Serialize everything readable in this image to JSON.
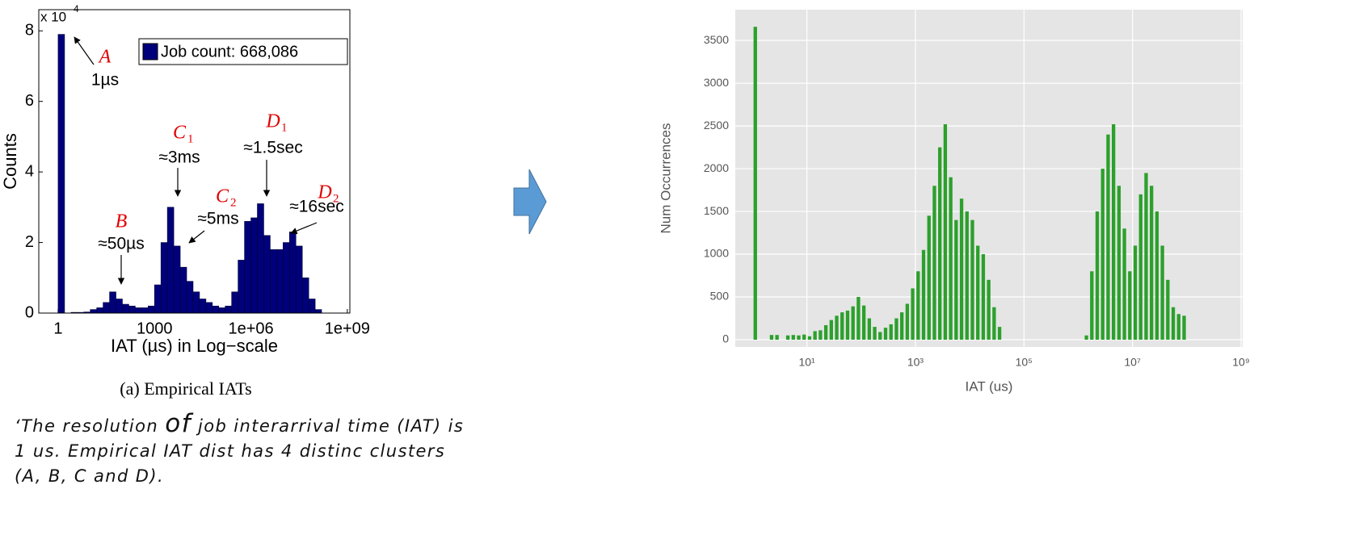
{
  "chart_data": [
    {
      "type": "histogram",
      "log_x": true,
      "caption": "(a) Empirical IATs",
      "xlabel": "IAT (µs) in Log−scale",
      "ylabel": "Counts",
      "y_multiplier": {
        "base": "x 10",
        "exponent": "4"
      },
      "bins": [
        1,
        1.585,
        2.512,
        3.981,
        6.31,
        10,
        15.85,
        25.12,
        39.81,
        63.1,
        100,
        158.5,
        251.2,
        398.1,
        631,
        1000,
        1585,
        2512,
        3981,
        6310,
        10000,
        15850,
        25120,
        39810,
        63100,
        100000,
        158500,
        251200,
        398100,
        631000,
        1000000,
        1585000,
        2512000,
        3981000,
        6310000,
        10000000,
        15850000,
        25120000,
        39810000,
        63100000,
        100000000,
        158500000,
        251200000,
        398100000,
        631000000,
        1000000000
      ],
      "series": [
        {
          "name": "Job count: 668,086",
          "color": "#00007a",
          "values": [
            7.9,
            0,
            0.02,
            0.02,
            0.03,
            0.1,
            0.15,
            0.3,
            0.6,
            0.4,
            0.25,
            0.2,
            0.15,
            0.15,
            0.2,
            0.8,
            2.0,
            3.0,
            1.9,
            1.3,
            0.9,
            0.6,
            0.4,
            0.3,
            0.2,
            0.15,
            0.2,
            0.6,
            1.5,
            2.6,
            2.7,
            3.1,
            2.2,
            1.8,
            1.8,
            2.0,
            2.3,
            1.9,
            1.0,
            0.4,
            0.1,
            0,
            0,
            0,
            0
          ]
        }
      ],
      "legend": "upper right",
      "xlim": [
        0.25,
        1200000000
      ],
      "xticks": [
        1,
        1000,
        {
          "value": 1000000,
          "label": "1e+06"
        },
        {
          "value": 1000000000,
          "label": "1e+09"
        }
      ],
      "ylim": [
        0,
        8.6
      ],
      "yticks": [
        0,
        2,
        4,
        6,
        8
      ],
      "grid": false,
      "annotations": [
        {
          "symbol": "A",
          "text": "1µs"
        },
        {
          "symbol": "B",
          "text": "≈50µs"
        },
        {
          "symbol": "C",
          "subscript": "1",
          "text": "≈3ms"
        },
        {
          "symbol": "C",
          "subscript": "2",
          "text": "≈5ms"
        },
        {
          "symbol": "D",
          "subscript": "1",
          "text": "≈1.5sec"
        },
        {
          "symbol": "D",
          "subscript": "2",
          "text": "≈16sec"
        }
      ]
    },
    {
      "type": "histogram",
      "log_x": true,
      "xlabel": "IAT (us)",
      "ylabel": "Num Occurrences",
      "color": "#2ca02c",
      "bins": [
        1,
        1.259,
        1.585,
        1.995,
        2.512,
        3.162,
        3.981,
        5.012,
        6.31,
        7.943,
        10,
        12.59,
        15.85,
        19.95,
        25.12,
        31.62,
        39.81,
        50.12,
        63.1,
        79.43,
        100,
        125.9,
        158.5,
        199.5,
        251.2,
        316.2,
        398.1,
        501.2,
        631,
        794.3,
        1000,
        1259,
        1585,
        1995,
        2512,
        3162,
        3981,
        5012,
        6310,
        7943,
        10000,
        12590,
        15850,
        19950,
        25120,
        31620,
        39810,
        50120,
        63100,
        79430,
        100000,
        125900,
        158500,
        199500,
        251200,
        316200,
        398100,
        501200,
        631000,
        794300,
        1000000,
        1259000,
        1585000,
        1995000,
        2512000,
        3162000,
        3981000,
        5012000,
        6310000,
        7943000,
        10000000,
        12590000,
        15850000,
        19950000,
        25120000,
        31620000,
        39810000,
        50120000,
        63100000,
        79430000,
        100000000
      ],
      "values": [
        3660,
        0,
        0,
        55,
        55,
        0,
        50,
        55,
        50,
        60,
        40,
        100,
        110,
        170,
        230,
        280,
        320,
        340,
        390,
        500,
        400,
        250,
        150,
        90,
        140,
        180,
        250,
        320,
        420,
        600,
        800,
        1050,
        1450,
        1800,
        2250,
        2520,
        1900,
        1400,
        1650,
        1500,
        1400,
        1100,
        1000,
        700,
        380,
        150,
        0,
        0,
        0,
        0,
        0,
        0,
        0,
        0,
        0,
        0,
        0,
        0,
        0,
        0,
        0,
        50,
        800,
        1500,
        2000,
        2400,
        2520,
        1800,
        1300,
        800,
        1100,
        1700,
        1950,
        1800,
        1500,
        1100,
        700,
        380,
        300,
        280
      ],
      "xlim": [
        0.48,
        1070000000
      ],
      "xticks": [
        {
          "value": 10,
          "label": "10¹"
        },
        {
          "value": 1000,
          "label": "10³"
        },
        {
          "value": 100000,
          "label": "10⁵"
        },
        {
          "value": 10000000,
          "label": "10⁷"
        },
        {
          "value": 1000000000,
          "label": "10⁹"
        }
      ],
      "ylim": [
        -85,
        3860
      ],
      "yticks": [
        0,
        500,
        1000,
        1500,
        2000,
        2500,
        3000,
        3500
      ],
      "grid": true,
      "background": "#e5e5e5"
    }
  ],
  "note": [
    "‘The resolution ",
    "of",
    " job interarrival time (IAT) is 1 us. Empirical IAT dist has 4 distinc clusters (A, B, C and D)."
  ]
}
